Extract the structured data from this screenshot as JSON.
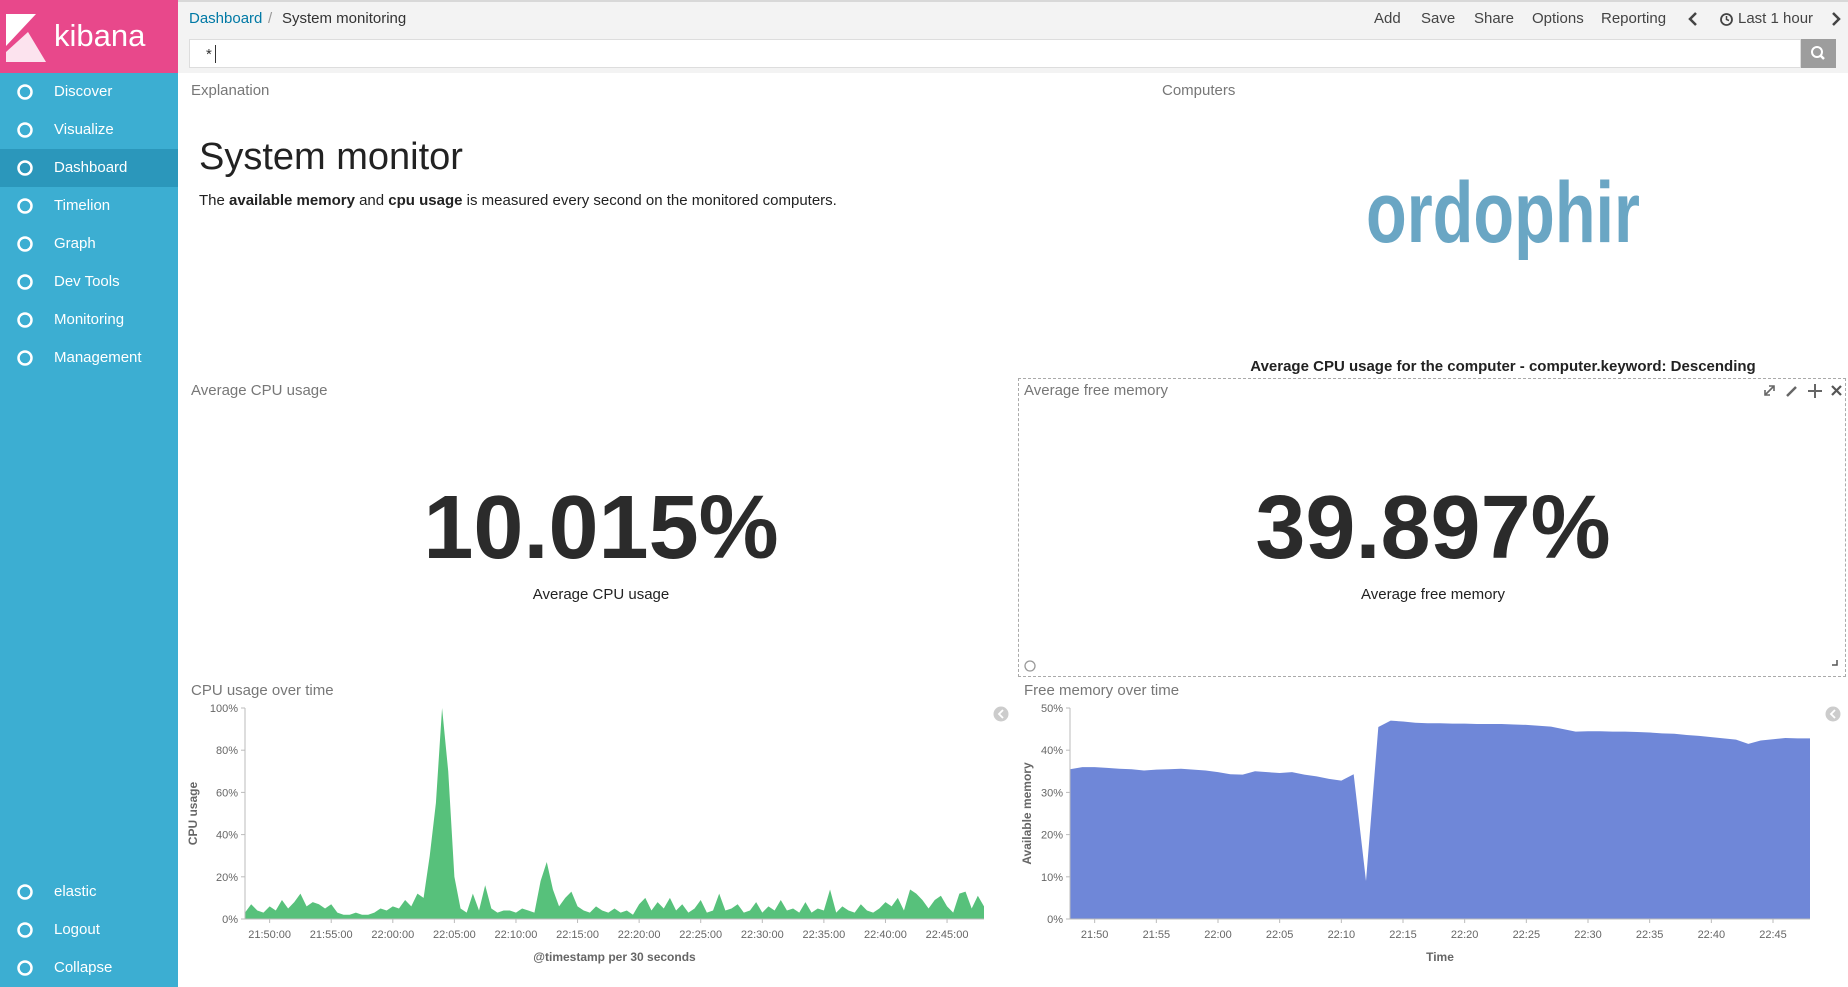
{
  "sidebar": {
    "logo": "kibana",
    "nav": [
      "Discover",
      "Visualize",
      "Dashboard",
      "Timelion",
      "Graph",
      "Dev Tools",
      "Monitoring",
      "Management"
    ],
    "active_nav": "Dashboard",
    "user_menu": [
      "elastic",
      "Logout",
      "Collapse"
    ]
  },
  "top_bar": {
    "breadcrumbs": [
      "Dashboard",
      "System monitoring"
    ],
    "separator": "/",
    "actions": [
      "Add",
      "Save",
      "Share",
      "Options",
      "Reporting"
    ],
    "time_range": "Last 1 hour"
  },
  "query": "*",
  "panels": {
    "explanation": {
      "title": "Explanation",
      "heading": "System monitor",
      "text_parts": [
        "The ",
        "available memory",
        " and ",
        "cpu usage",
        " is measured every second on the monitored computers."
      ]
    },
    "computers": {
      "title": "Computers",
      "word": "ordophir",
      "caption": "Average CPU usage for the computer - computer.keyword: Descending"
    },
    "metrics": [
      {
        "title": "Average CPU usage",
        "value": "10.015%",
        "label": "Average CPU usage"
      },
      {
        "title": "Average free memory",
        "value": "39.897%",
        "label": "Average free memory"
      }
    ]
  },
  "chart_data": [
    {
      "type": "area",
      "title": "CPU usage over time",
      "x_label": "@timestamp per 30 seconds",
      "y_label": "CPU usage",
      "color": "#57c17b",
      "x": [
        "21:48:00",
        "21:48:30",
        "21:49:00",
        "21:49:30",
        "21:50:00",
        "21:50:30",
        "21:51:00",
        "21:51:30",
        "21:52:00",
        "21:52:30",
        "21:53:00",
        "21:53:30",
        "21:54:00",
        "21:54:30",
        "21:55:00",
        "21:55:30",
        "21:56:00",
        "21:56:30",
        "21:57:00",
        "21:57:30",
        "21:58:00",
        "21:58:30",
        "21:59:00",
        "21:59:30",
        "22:00:00",
        "22:00:30",
        "22:01:00",
        "22:01:30",
        "22:02:00",
        "22:02:30",
        "22:03:00",
        "22:03:30",
        "22:04:00",
        "22:04:30",
        "22:05:00",
        "22:05:30",
        "22:06:00",
        "22:06:30",
        "22:07:00",
        "22:07:30",
        "22:08:00",
        "22:08:30",
        "22:09:00",
        "22:09:30",
        "22:10:00",
        "22:10:30",
        "22:11:00",
        "22:11:30",
        "22:12:00",
        "22:12:30",
        "22:13:00",
        "22:13:30",
        "22:14:00",
        "22:14:30",
        "22:15:00",
        "22:15:30",
        "22:16:00",
        "22:16:30",
        "22:17:00",
        "22:17:30",
        "22:18:00",
        "22:18:30",
        "22:19:00",
        "22:19:30",
        "22:20:00",
        "22:20:30",
        "22:21:00",
        "22:21:30",
        "22:22:00",
        "22:22:30",
        "22:23:00",
        "22:23:30",
        "22:24:00",
        "22:24:30",
        "22:25:00",
        "22:25:30",
        "22:26:00",
        "22:26:30",
        "22:27:00",
        "22:27:30",
        "22:28:00",
        "22:28:30",
        "22:29:00",
        "22:29:30",
        "22:30:00",
        "22:30:30",
        "22:31:00",
        "22:31:30",
        "22:32:00",
        "22:32:30",
        "22:33:00",
        "22:33:30",
        "22:34:00",
        "22:34:30",
        "22:35:00",
        "22:35:30",
        "22:36:00",
        "22:36:30",
        "22:37:00",
        "22:37:30",
        "22:38:00",
        "22:38:30",
        "22:39:00",
        "22:39:30",
        "22:40:00",
        "22:40:30",
        "22:41:00",
        "22:41:30",
        "22:42:00",
        "22:42:30",
        "22:43:00",
        "22:43:30",
        "22:44:00",
        "22:44:30",
        "22:45:00",
        "22:45:30",
        "22:46:00",
        "22:46:30",
        "22:47:00",
        "22:47:30",
        "22:48:00"
      ],
      "values": [
        3,
        7,
        4,
        3,
        6,
        4,
        9,
        5,
        8,
        12,
        6,
        8,
        7,
        5,
        7,
        3,
        2,
        2,
        3,
        2,
        2,
        3,
        5,
        4,
        6,
        5,
        9,
        6,
        12,
        10,
        30,
        55,
        100,
        70,
        20,
        5,
        3,
        12,
        4,
        16,
        5,
        3,
        4,
        4,
        3,
        5,
        4,
        3,
        18,
        27,
        14,
        6,
        10,
        13,
        6,
        4,
        3,
        6,
        4,
        3,
        5,
        3,
        4,
        2,
        7,
        10,
        4,
        8,
        5,
        10,
        4,
        7,
        3,
        5,
        9,
        3,
        4,
        12,
        4,
        5,
        7,
        3,
        4,
        8,
        3,
        6,
        4,
        9,
        4,
        5,
        3,
        8,
        3,
        5,
        4,
        14,
        3,
        6,
        4,
        3,
        7,
        4,
        3,
        5,
        8,
        6,
        10,
        4,
        14,
        12,
        9,
        5,
        9,
        11,
        6,
        3,
        12,
        13,
        5,
        11,
        6
      ],
      "xlim": [
        "21:48:00",
        "22:48:00"
      ],
      "xticks": [
        "21:50:00",
        "21:55:00",
        "22:00:00",
        "22:05:00",
        "22:10:00",
        "22:15:00",
        "22:20:00",
        "22:25:00",
        "22:30:00",
        "22:35:00",
        "22:40:00",
        "22:45:00"
      ],
      "ylim": [
        0,
        100
      ],
      "yticks": [
        {
          "value": 0,
          "label": "0%"
        },
        {
          "value": 20,
          "label": "20%"
        },
        {
          "value": 40,
          "label": "40%"
        },
        {
          "value": 60,
          "label": "60%"
        },
        {
          "value": 80,
          "label": "80%"
        },
        {
          "value": 100,
          "label": "100%"
        }
      ]
    },
    {
      "type": "area",
      "title": "Free memory over time",
      "x_label": "Time",
      "y_label": "Available memory",
      "color": "#6f87d8",
      "x": [
        "21:48",
        "21:49",
        "21:50",
        "21:51",
        "21:52",
        "21:53",
        "21:54",
        "21:55",
        "21:56",
        "21:57",
        "21:58",
        "21:59",
        "22:00",
        "22:01",
        "22:02",
        "22:03",
        "22:04",
        "22:05",
        "22:06",
        "22:07",
        "22:08",
        "22:09",
        "22:10",
        "22:11",
        "22:12",
        "22:13",
        "22:14",
        "22:15",
        "22:16",
        "22:17",
        "22:18",
        "22:19",
        "22:20",
        "22:21",
        "22:22",
        "22:23",
        "22:24",
        "22:25",
        "22:26",
        "22:27",
        "22:28",
        "22:29",
        "22:30",
        "22:31",
        "22:32",
        "22:33",
        "22:34",
        "22:35",
        "22:36",
        "22:37",
        "22:38",
        "22:39",
        "22:40",
        "22:41",
        "22:42",
        "22:43",
        "22:44",
        "22:45",
        "22:46",
        "22:47",
        "22:48"
      ],
      "values": [
        35.5,
        36,
        36,
        35.8,
        35.6,
        35.5,
        35.2,
        35.4,
        35.5,
        35.6,
        35.4,
        35.2,
        34.8,
        34.3,
        34.2,
        35,
        34.8,
        34.6,
        34.8,
        34.2,
        33.8,
        33.2,
        32.8,
        34.3,
        9,
        45.5,
        47,
        46.8,
        46.5,
        46.4,
        46.4,
        46.3,
        46.3,
        46.2,
        46.2,
        46.2,
        46.1,
        46,
        45.8,
        45.6,
        45,
        44.4,
        44.5,
        44.5,
        44.4,
        44.4,
        44.3,
        44.2,
        44,
        43.9,
        43.6,
        43.4,
        43.1,
        42.8,
        42.5,
        41.5,
        42.3,
        42.6,
        42.9,
        42.8,
        42.8
      ],
      "xlim": [
        "21:48",
        "22:48"
      ],
      "xticks": [
        "21:50",
        "21:55",
        "22:00",
        "22:05",
        "22:10",
        "22:15",
        "22:20",
        "22:25",
        "22:30",
        "22:35",
        "22:40",
        "22:45"
      ],
      "ylim": [
        0,
        50
      ],
      "yticks": [
        {
          "value": 0,
          "label": "0%"
        },
        {
          "value": 10,
          "label": "10%"
        },
        {
          "value": 20,
          "label": "20%"
        },
        {
          "value": 30,
          "label": "30%"
        },
        {
          "value": 40,
          "label": "40%"
        },
        {
          "value": 50,
          "label": "50%"
        }
      ]
    }
  ]
}
